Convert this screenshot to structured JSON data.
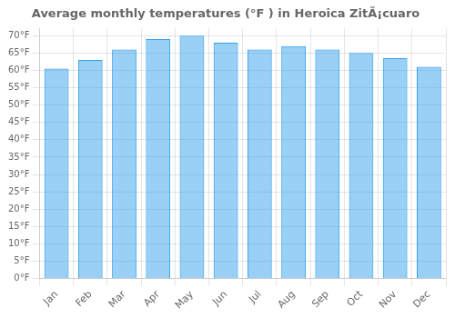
{
  "chart_data": {
    "type": "bar",
    "title": "Average monthly temperatures (°F ) in Heroica ZitÃ¡cuaro",
    "categories": [
      "Jan",
      "Feb",
      "Mar",
      "Apr",
      "May",
      "Jun",
      "Jul",
      "Aug",
      "Sep",
      "Oct",
      "Nov",
      "Dec"
    ],
    "values": [
      60.5,
      63.0,
      66.0,
      69.0,
      70.0,
      68.0,
      66.0,
      67.0,
      66.0,
      65.0,
      63.5,
      61.0
    ],
    "ylim": [
      0,
      72
    ],
    "yticks": [
      {
        "value": 0,
        "label": "0°F"
      },
      {
        "value": 5,
        "label": "5°F"
      },
      {
        "value": 10,
        "label": "10°F"
      },
      {
        "value": 15,
        "label": "15°F"
      },
      {
        "value": 20,
        "label": "20°F"
      },
      {
        "value": 25,
        "label": "25°F"
      },
      {
        "value": 30,
        "label": "30°F"
      },
      {
        "value": 35,
        "label": "35°F"
      },
      {
        "value": 40,
        "label": "40°F"
      },
      {
        "value": 45,
        "label": "45°F"
      },
      {
        "value": 50,
        "label": "50°F"
      },
      {
        "value": 55,
        "label": "55°F"
      },
      {
        "value": 60,
        "label": "60°F"
      },
      {
        "value": 65,
        "label": "65°F"
      },
      {
        "value": 70,
        "label": "70°F"
      }
    ],
    "grid": true
  }
}
